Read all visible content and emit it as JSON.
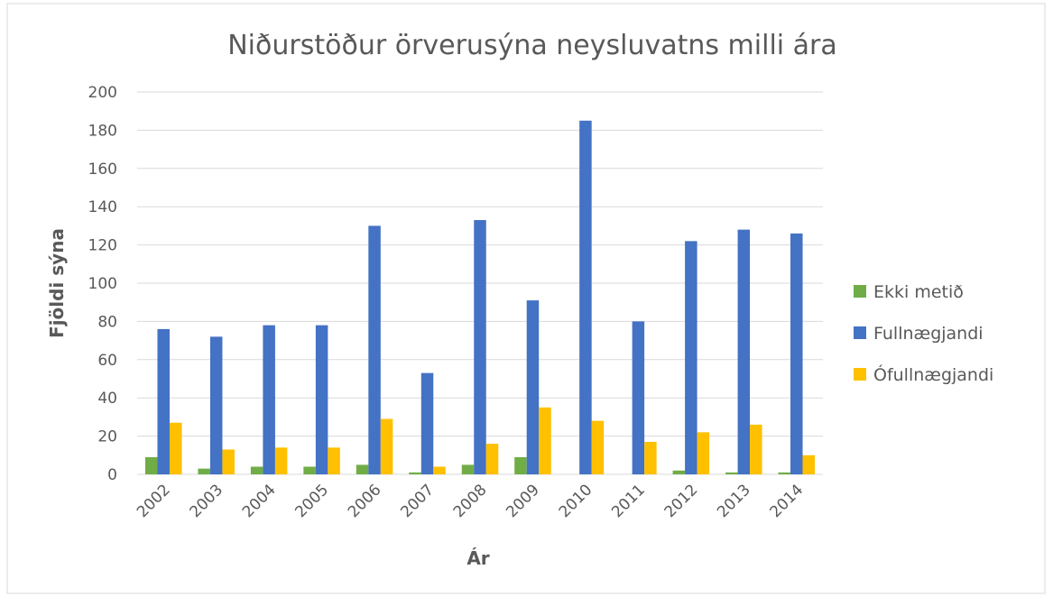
{
  "chart_data": {
    "type": "bar",
    "title": "Niðurstöður örverusýna neysluvatns milli ára",
    "x_label": "Ár",
    "y_label": "Fjöldi sýna",
    "categories": [
      "2002",
      "2003",
      "2004",
      "2005",
      "2006",
      "2007",
      "2008",
      "2009",
      "2010",
      "2011",
      "2012",
      "2013",
      "2014"
    ],
    "series": [
      {
        "name": "Ekki metið",
        "color": "#70ad47",
        "values": [
          9,
          3,
          4,
          4,
          5,
          1,
          5,
          9,
          0,
          0,
          2,
          1,
          1
        ]
      },
      {
        "name": "Fullnægjandi",
        "color": "#4472c4",
        "values": [
          76,
          72,
          78,
          78,
          130,
          53,
          133,
          91,
          185,
          80,
          122,
          128,
          126
        ]
      },
      {
        "name": "Ófullnægjandi",
        "color": "#ffc000",
        "values": [
          27,
          13,
          14,
          14,
          29,
          4,
          16,
          35,
          28,
          17,
          22,
          26,
          10
        ]
      }
    ],
    "ylim": [
      0,
      200
    ],
    "yticks": [
      0,
      20,
      40,
      60,
      80,
      100,
      120,
      140,
      160,
      180,
      200
    ],
    "grid": true,
    "legend": "right"
  }
}
